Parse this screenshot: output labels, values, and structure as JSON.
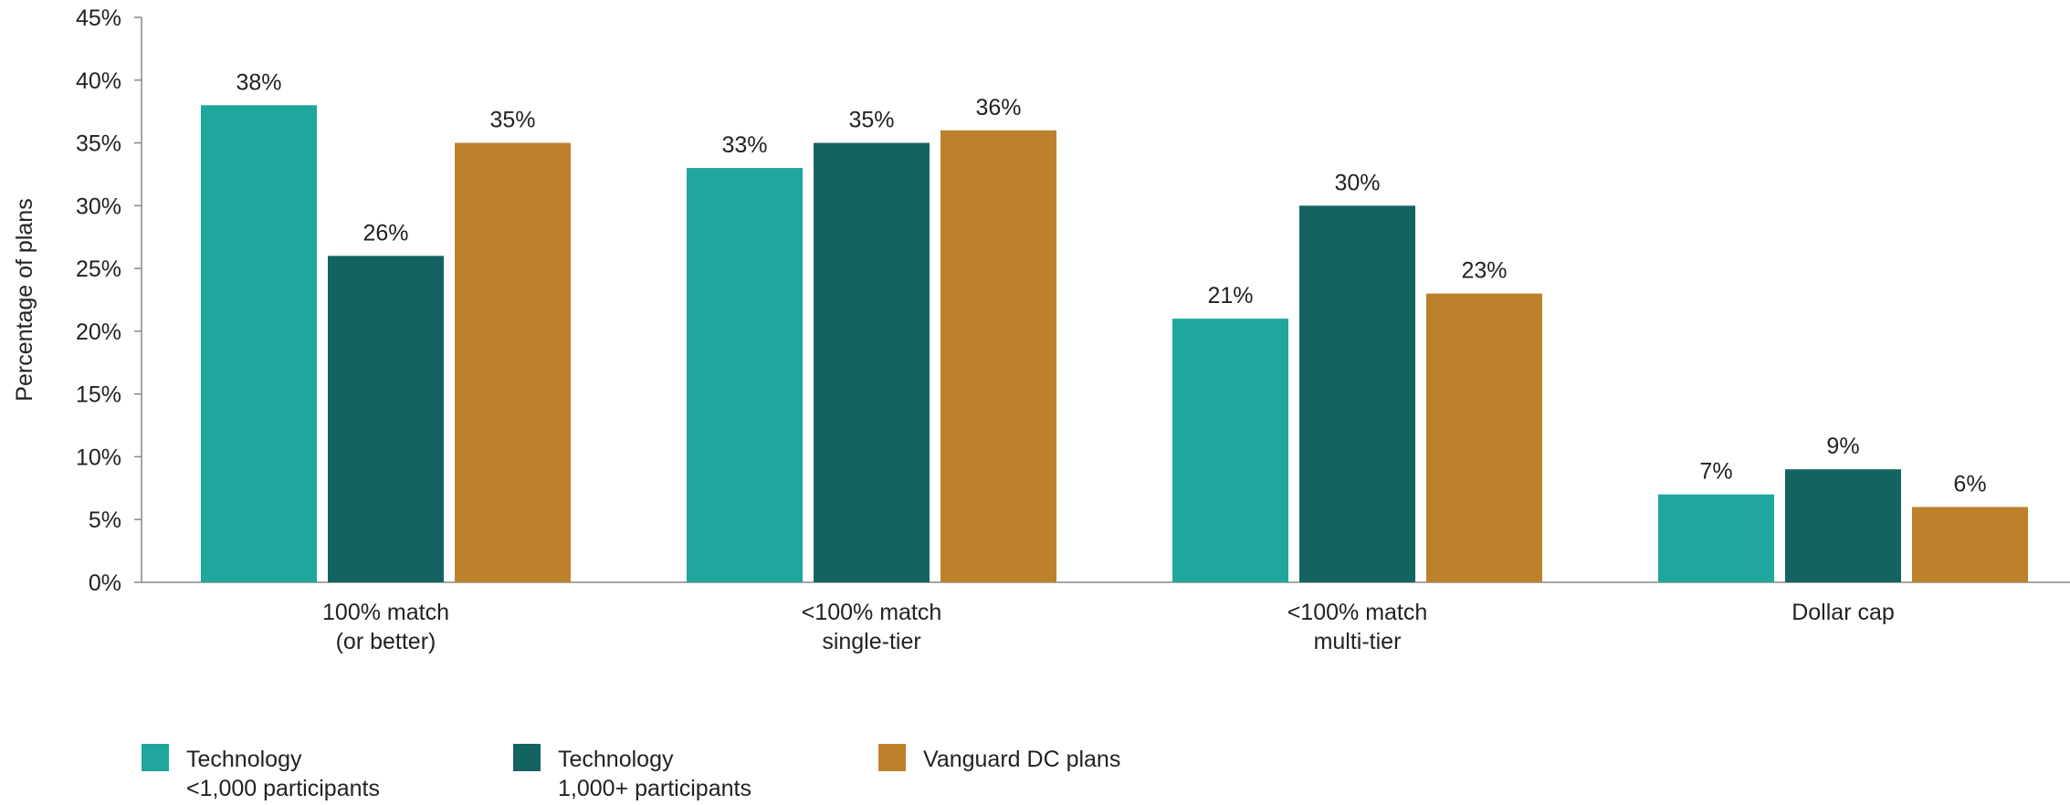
{
  "chart_data": {
    "type": "bar",
    "title": "",
    "xlabel": "",
    "ylabel": "Percentage of plans",
    "ylim": [
      0,
      45
    ],
    "y_ticks": [
      0,
      5,
      10,
      15,
      20,
      25,
      30,
      35,
      40,
      45
    ],
    "y_tick_labels": [
      "0%",
      "5%",
      "10%",
      "15%",
      "20%",
      "25%",
      "30%",
      "35%",
      "40%",
      "45%"
    ],
    "grid": false,
    "legend_position": "bottom-left",
    "categories": [
      [
        "100% match",
        "(or better)"
      ],
      [
        "<100% match",
        "single-tier"
      ],
      [
        "<100% match",
        "multi-tier"
      ],
      [
        "Dollar cap"
      ]
    ],
    "series": [
      {
        "name": [
          "Technology",
          "<1,000 participants"
        ],
        "color": "#1fa69d",
        "values": [
          38,
          33,
          21,
          7
        ],
        "labels": [
          "38%",
          "33%",
          "21%",
          "7%"
        ]
      },
      {
        "name": [
          "Technology",
          "1,000+ participants"
        ],
        "color": "#136460",
        "values": [
          26,
          35,
          30,
          9
        ],
        "labels": [
          "26%",
          "35%",
          "30%",
          "9%"
        ]
      },
      {
        "name": [
          "Vanguard DC plans"
        ],
        "color": "#bd812c",
        "values": [
          35,
          36,
          23,
          6
        ],
        "labels": [
          "35%",
          "36%",
          "23%",
          "6%"
        ]
      }
    ]
  }
}
